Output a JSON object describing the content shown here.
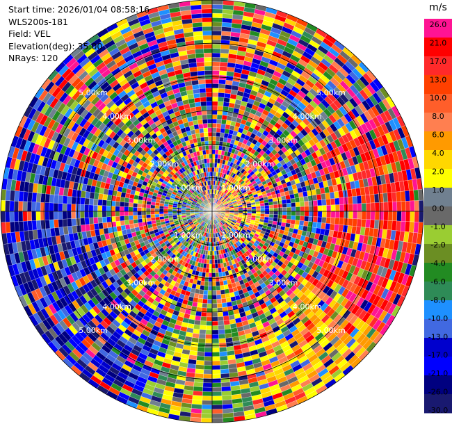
{
  "header": {
    "start_time": "Start time: 2026/01/04 08:58:16",
    "instrument": "WLS200s-181",
    "field": "Field: VEL",
    "elevation": "Elevation(deg): 35.00",
    "nrays": "NRays: 120"
  },
  "chart_data": {
    "type": "ppi",
    "title": "VEL",
    "field": "VEL",
    "units": "m/s",
    "elevation_deg": 35.0,
    "n_rays": 120,
    "range_rings_km": [
      1,
      2,
      3,
      4,
      5
    ],
    "range_ring_labels": [
      "1.00km",
      "2.00km",
      "3.00km",
      "4.00km",
      "5.00km"
    ],
    "max_range_km": 5.8,
    "colorbar": {
      "label": "m/s",
      "ticks": [
        "26.0",
        "21.0",
        "17.0",
        "13.0",
        "10.0",
        "8.0",
        "6.0",
        "4.0",
        "2.0",
        "1.0",
        "0.0",
        "-1.0",
        "-2.0",
        "-4.0",
        "-6.0",
        "-8.0",
        "-10.0",
        "-13.0",
        "-17.0",
        "-21.0",
        "-26.0",
        "-30.0"
      ],
      "colors": [
        "#ff1493",
        "#ff0000",
        "#ff2a2a",
        "#ff4000",
        "#ff5e2a",
        "#ff7f50",
        "#ff9a00",
        "#ffd700",
        "#ffff00",
        "#708090",
        "#696969",
        "#9acd32",
        "#6b8e23",
        "#228b22",
        "#2e8b57",
        "#1e90ff",
        "#4169e1",
        "#0000cd",
        "#0000ff",
        "#000080",
        "#191970"
      ]
    },
    "ring_label_color": "#ffffff"
  }
}
